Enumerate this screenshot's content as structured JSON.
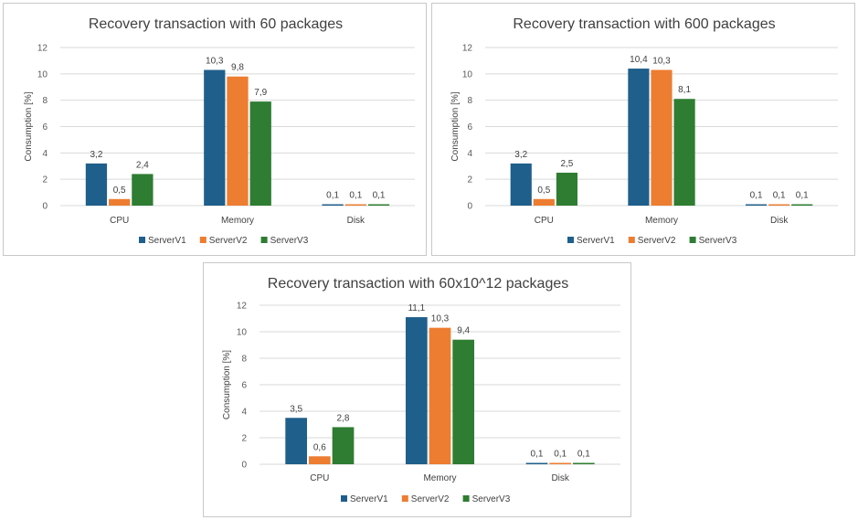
{
  "colors": {
    "ServerV1": "#1f5f8b",
    "ServerV2": "#ed7d31",
    "ServerV3": "#2e7d32"
  },
  "chart_data": [
    {
      "type": "bar",
      "title": "Recovery transaction with 60 packages",
      "ylabel": "Consumption [%]",
      "xlabel": "",
      "ylim": [
        0,
        12
      ],
      "yticks": [
        0,
        2,
        4,
        6,
        8,
        10,
        12
      ],
      "categories": [
        "CPU",
        "Memory",
        "Disk"
      ],
      "grid": true,
      "legend_position": "bottom",
      "series": [
        {
          "name": "ServerV1",
          "values": [
            3.2,
            10.3,
            0.1
          ],
          "labels": [
            "3,2",
            "10,3",
            "0,1"
          ]
        },
        {
          "name": "ServerV2",
          "values": [
            0.5,
            9.8,
            0.1
          ],
          "labels": [
            "0,5",
            "9,8",
            "0,1"
          ]
        },
        {
          "name": "ServerV3",
          "values": [
            2.4,
            7.9,
            0.1
          ],
          "labels": [
            "2,4",
            "7,9",
            "0,1"
          ]
        }
      ]
    },
    {
      "type": "bar",
      "title": "Recovery transaction with 600 packages",
      "ylabel": "Consumption [%]",
      "xlabel": "",
      "ylim": [
        0,
        12
      ],
      "yticks": [
        0,
        2,
        4,
        6,
        8,
        10,
        12
      ],
      "categories": [
        "CPU",
        "Memory",
        "Disk"
      ],
      "grid": true,
      "legend_position": "bottom",
      "series": [
        {
          "name": "ServerV1",
          "values": [
            3.2,
            10.4,
            0.1
          ],
          "labels": [
            "3,2",
            "10,4",
            "0,1"
          ]
        },
        {
          "name": "ServerV2",
          "values": [
            0.5,
            10.3,
            0.1
          ],
          "labels": [
            "0,5",
            "10,3",
            "0,1"
          ]
        },
        {
          "name": "ServerV3",
          "values": [
            2.5,
            8.1,
            0.1
          ],
          "labels": [
            "2,5",
            "8,1",
            "0,1"
          ]
        }
      ]
    },
    {
      "type": "bar",
      "title": "Recovery transaction with 60x10^12 packages",
      "ylabel": "Consumption [%]",
      "xlabel": "",
      "ylim": [
        0,
        12
      ],
      "yticks": [
        0,
        2,
        4,
        6,
        8,
        10,
        12
      ],
      "categories": [
        "CPU",
        "Memory",
        "Disk"
      ],
      "grid": true,
      "legend_position": "bottom",
      "series": [
        {
          "name": "ServerV1",
          "values": [
            3.5,
            11.1,
            0.1
          ],
          "labels": [
            "3,5",
            "11,1",
            "0,1"
          ]
        },
        {
          "name": "ServerV2",
          "values": [
            0.6,
            10.3,
            0.1
          ],
          "labels": [
            "0,6",
            "10,3",
            "0,1"
          ]
        },
        {
          "name": "ServerV3",
          "values": [
            2.8,
            9.4,
            0.1
          ],
          "labels": [
            "2,8",
            "9,4",
            "0,1"
          ]
        }
      ]
    }
  ]
}
